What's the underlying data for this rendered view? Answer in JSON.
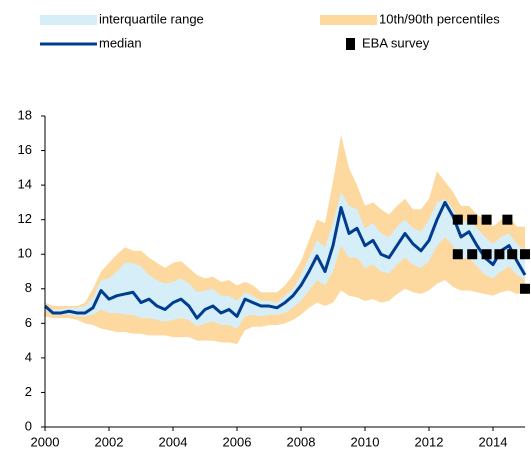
{
  "chart_data": {
    "type": "line",
    "legend": "top",
    "x": [
      2000,
      2000.25,
      2000.5,
      2000.75,
      2001,
      2001.25,
      2001.5,
      2001.75,
      2002,
      2002.25,
      2002.5,
      2002.75,
      2003,
      2003.25,
      2003.5,
      2003.75,
      2004,
      2004.25,
      2004.5,
      2004.75,
      2005,
      2005.25,
      2005.5,
      2005.75,
      2006,
      2006.25,
      2006.5,
      2006.75,
      2007,
      2007.25,
      2007.5,
      2007.75,
      2008,
      2008.25,
      2008.5,
      2008.75,
      2009,
      2009.25,
      2009.5,
      2009.75,
      2010,
      2010.25,
      2010.5,
      2010.75,
      2011,
      2011.25,
      2011.5,
      2011.75,
      2012,
      2012.25,
      2012.5,
      2012.75,
      2013,
      2013.25,
      2013.5,
      2013.75,
      2014,
      2014.25,
      2014.5,
      2014.75,
      2015
    ],
    "series": [
      {
        "name": "10th/90th percentiles",
        "type": "band",
        "color": "#fdd9a0",
        "low": [
          6.4,
          6.3,
          6.3,
          6.3,
          6.2,
          6.0,
          5.9,
          5.7,
          5.6,
          5.5,
          5.5,
          5.4,
          5.4,
          5.3,
          5.3,
          5.3,
          5.2,
          5.2,
          5.2,
          5.0,
          5.0,
          5.0,
          4.9,
          4.9,
          4.8,
          5.6,
          5.8,
          5.8,
          5.9,
          5.9,
          6.0,
          6.2,
          6.5,
          6.9,
          7.2,
          7.0,
          7.2,
          7.9,
          7.6,
          7.5,
          7.3,
          7.4,
          7.2,
          7.3,
          7.7,
          8.0,
          7.8,
          7.7,
          7.9,
          8.3,
          8.5,
          8.1,
          7.9,
          7.9,
          7.8,
          7.7,
          7.6,
          7.8,
          7.9,
          7.7,
          7.8
        ],
        "high": [
          7.2,
          7.0,
          7.0,
          7.0,
          7.0,
          7.2,
          8.0,
          9.0,
          9.5,
          10.0,
          10.4,
          10.2,
          10.2,
          9.8,
          9.5,
          9.2,
          9.5,
          9.6,
          9.2,
          8.8,
          8.6,
          8.7,
          8.4,
          8.5,
          8.2,
          8.4,
          8.2,
          7.8,
          7.8,
          7.8,
          8.2,
          8.8,
          9.6,
          10.8,
          12.0,
          11.8,
          14.2,
          16.9,
          15.0,
          14.0,
          12.8,
          13.0,
          12.6,
          12.3,
          12.8,
          13.2,
          12.6,
          12.6,
          13.2,
          14.8,
          14.2,
          13.6,
          12.8,
          12.8,
          12.3,
          12.0,
          11.6,
          12.0,
          12.2,
          11.6,
          11.6
        ]
      },
      {
        "name": "interquartile range",
        "type": "band",
        "color": "#d6eef8",
        "low": [
          6.8,
          6.5,
          6.5,
          6.5,
          6.4,
          6.4,
          6.5,
          6.8,
          6.6,
          6.6,
          6.5,
          6.5,
          6.3,
          6.3,
          6.2,
          6.1,
          6.2,
          6.3,
          6.2,
          5.8,
          6.0,
          6.1,
          5.9,
          5.9,
          5.7,
          6.4,
          6.5,
          6.4,
          6.5,
          6.5,
          6.6,
          6.9,
          7.3,
          7.9,
          8.5,
          8.2,
          9.0,
          10.5,
          9.8,
          9.8,
          9.2,
          9.4,
          9.0,
          8.9,
          9.4,
          9.8,
          9.4,
          9.2,
          9.6,
          10.5,
          11.0,
          10.5,
          9.7,
          9.8,
          9.3,
          8.8,
          8.6,
          9.0,
          9.3,
          8.8,
          8.5
        ],
        "high": [
          7.1,
          6.8,
          6.8,
          6.9,
          6.9,
          7.0,
          7.5,
          8.5,
          8.6,
          9.0,
          9.5,
          9.5,
          9.3,
          8.8,
          8.5,
          8.3,
          8.4,
          8.6,
          8.3,
          7.8,
          7.9,
          8.0,
          7.6,
          7.6,
          7.3,
          7.8,
          7.6,
          7.3,
          7.3,
          7.2,
          7.6,
          8.0,
          8.8,
          9.8,
          10.8,
          10.4,
          11.8,
          13.6,
          12.8,
          12.6,
          11.5,
          11.8,
          11.2,
          11.0,
          11.6,
          12.0,
          11.5,
          11.3,
          12.0,
          13.0,
          13.2,
          12.6,
          11.8,
          12.0,
          11.5,
          11.0,
          10.6,
          11.0,
          11.2,
          10.6,
          10.2
        ]
      },
      {
        "name": "median",
        "type": "line",
        "color": "#003d8f",
        "values": [
          7.0,
          6.6,
          6.6,
          6.7,
          6.6,
          6.6,
          6.9,
          7.9,
          7.4,
          7.6,
          7.7,
          7.8,
          7.2,
          7.4,
          7.0,
          6.8,
          7.2,
          7.4,
          7.0,
          6.3,
          6.8,
          7.0,
          6.6,
          6.8,
          6.4,
          7.4,
          7.2,
          7.0,
          7.0,
          6.9,
          7.2,
          7.6,
          8.2,
          9.0,
          9.9,
          9.0,
          10.5,
          12.7,
          11.2,
          11.5,
          10.5,
          10.8,
          10.0,
          9.8,
          10.5,
          11.2,
          10.6,
          10.2,
          10.8,
          12.0,
          13.0,
          12.2,
          11.0,
          11.3,
          10.5,
          9.8,
          9.4,
          10.2,
          10.5,
          9.6,
          8.8
        ]
      },
      {
        "name": "EBA survey",
        "type": "scatter",
        "color": "#000000",
        "x": [
          2012.9,
          2013.35,
          2013.8,
          2014.45,
          2012.9,
          2013.35,
          2013.8,
          2014.2,
          2014.6,
          2015,
          2015
        ],
        "values": [
          12,
          12,
          12,
          12,
          10,
          10,
          10,
          10,
          10,
          10,
          8
        ]
      }
    ],
    "xlim": [
      2000,
      2015
    ],
    "xticks": [
      2000,
      2002,
      2004,
      2006,
      2008,
      2010,
      2012,
      2014
    ],
    "ylim": [
      0,
      18
    ],
    "yticks": [
      0,
      2,
      4,
      6,
      8,
      10,
      12,
      14,
      16,
      18
    ]
  }
}
